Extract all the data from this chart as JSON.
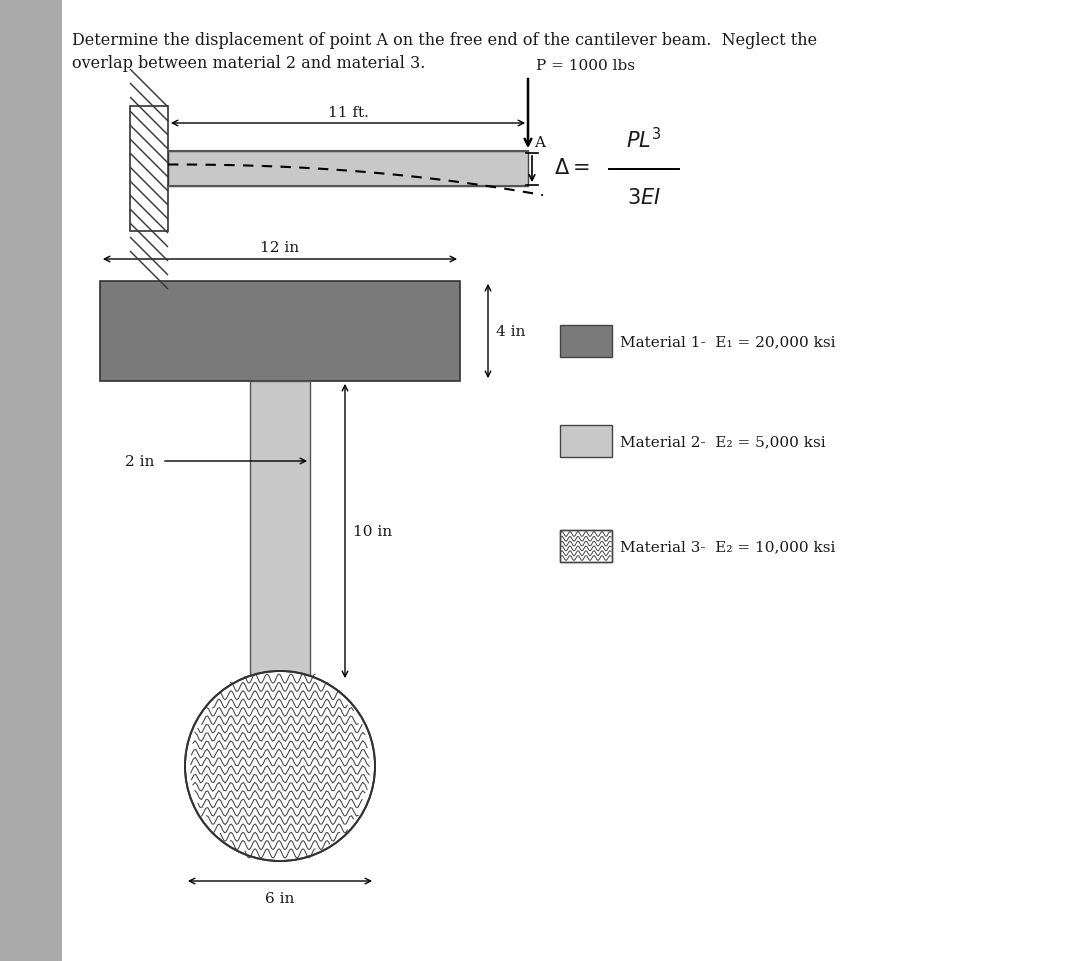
{
  "title_text": "Determine the displacement of point A on the free end of the cantilever beam.  Neglect the\noverlap between material 2 and material 3.",
  "bg_color": "#ffffff",
  "text_color": "#1a1a1a",
  "mat1_color": "#7a7a7a",
  "mat2_color": "#c8c8c8",
  "sidebar_color": "#aaaaaa",
  "beam_length_label": "11 ft.",
  "load_label": "P = 1000 lbs",
  "point_label": "A",
  "width_label": "12 in",
  "height_label1": "4 in",
  "width2_label": "2 in",
  "height_label2": "10 in",
  "diameter_label": "6 in",
  "legend": [
    {
      "label": "Material 1-  E₁ = 20,000 ksi",
      "type": "rect",
      "color": "#7a7a7a"
    },
    {
      "label": "Material 2-  E₂ = 5,000 ksi",
      "type": "rect",
      "color": "#c8c8c8"
    },
    {
      "label": "Material 3-  E₂ = 10,000 ksi",
      "type": "zigzag",
      "color": "#888888"
    }
  ]
}
